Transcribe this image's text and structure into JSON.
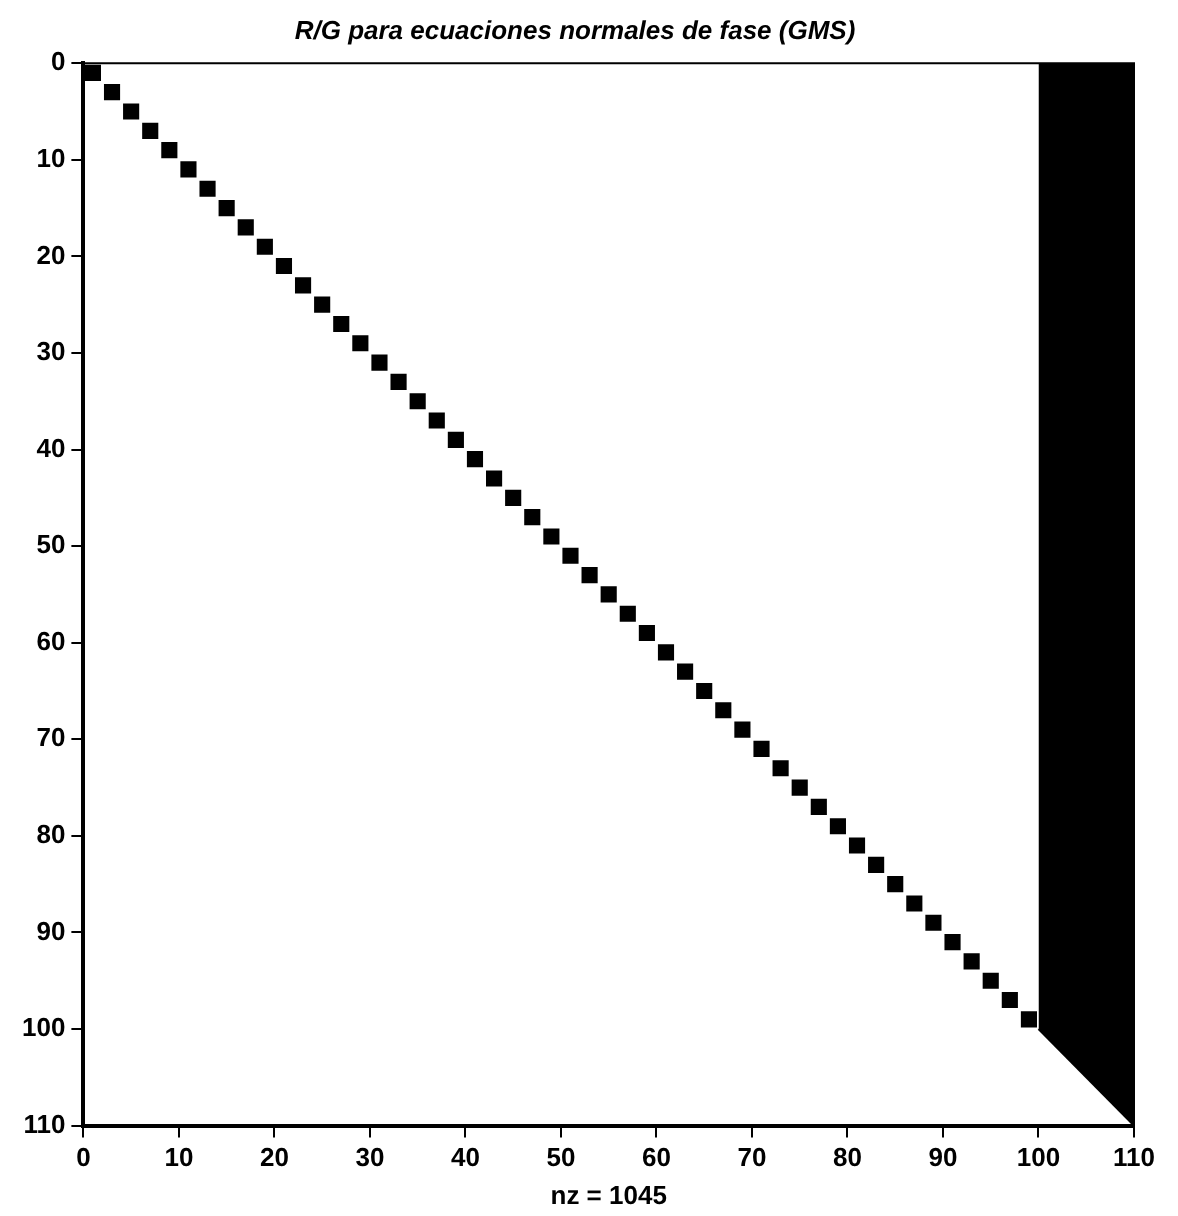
{
  "chart_data": {
    "type": "scatter",
    "title": "R/G para ecuaciones normales de fase (GMS)",
    "xlabel": "nz = 1045",
    "xlim": [
      0,
      110
    ],
    "ylim": [
      110,
      0
    ],
    "xticks": [
      0,
      10,
      20,
      30,
      40,
      50,
      60,
      70,
      80,
      90,
      100,
      110
    ],
    "yticks": [
      0,
      10,
      20,
      30,
      40,
      50,
      60,
      70,
      80,
      90,
      100,
      110
    ],
    "grid": false,
    "legend": false,
    "series": [
      {
        "marker": "square",
        "color": "#000000",
        "x": [
          1,
          3,
          5,
          7,
          9,
          11,
          13,
          15,
          17,
          19,
          21,
          23,
          25,
          27,
          29,
          31,
          33,
          35,
          37,
          39,
          41,
          43,
          45,
          47,
          49,
          51,
          53,
          55,
          57,
          59,
          61,
          63,
          65,
          67,
          69,
          71,
          73,
          75,
          77,
          79,
          81,
          83,
          85,
          87,
          89,
          91,
          93,
          95,
          97,
          99
        ],
        "values": [
          1,
          3,
          5,
          7,
          9,
          11,
          13,
          15,
          17,
          19,
          21,
          23,
          25,
          27,
          29,
          31,
          33,
          35,
          37,
          39,
          41,
          43,
          45,
          47,
          49,
          51,
          53,
          55,
          57,
          59,
          61,
          63,
          65,
          67,
          69,
          71,
          73,
          75,
          77,
          79,
          81,
          83,
          85,
          87,
          89,
          91,
          93,
          95,
          97,
          99
        ]
      },
      {
        "type": "area",
        "color": "#000000",
        "x": [
          100,
          110
        ],
        "values": [
          100,
          110
        ]
      }
    ]
  }
}
